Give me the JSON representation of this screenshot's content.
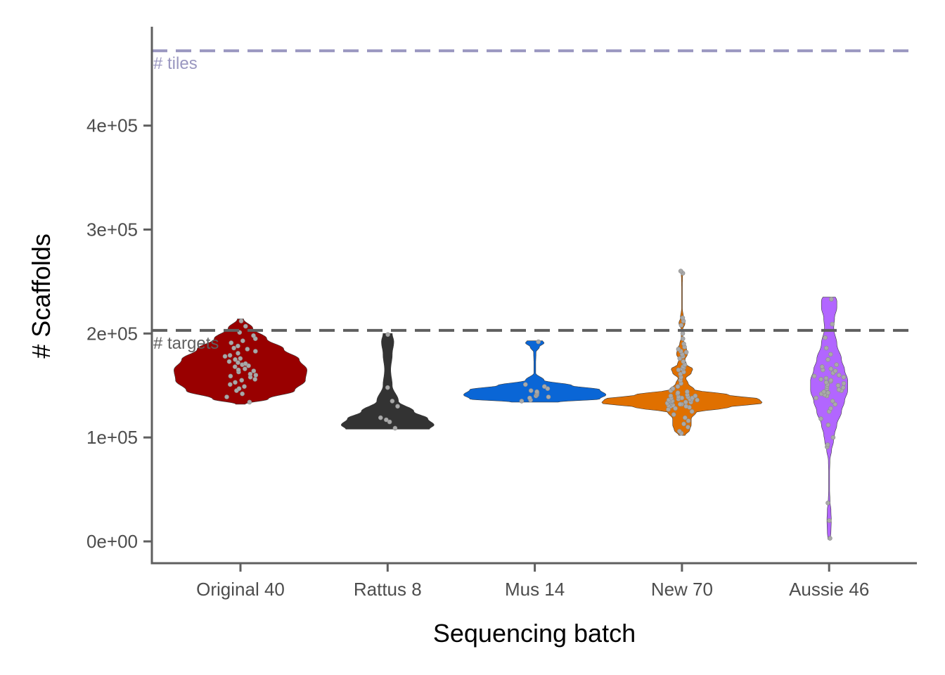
{
  "chart_data": {
    "type": "violin",
    "xlabel": "Sequencing batch",
    "ylabel": "# Scaffolds",
    "ylim": [
      -20000,
      495000
    ],
    "y_ticks": [
      {
        "value": 0,
        "label": "0e+00"
      },
      {
        "value": 100000,
        "label": "1e+05"
      },
      {
        "value": 200000,
        "label": "2e+05"
      },
      {
        "value": 300000,
        "label": "3e+05"
      },
      {
        "value": 400000,
        "label": "4e+05"
      }
    ],
    "reference_lines": [
      {
        "label": "# tiles",
        "value": 472000,
        "color": "#9a97c0",
        "style": "dashed"
      },
      {
        "label": "# targets",
        "value": 203000,
        "color": "#5f5f5f",
        "style": "dashed"
      }
    ],
    "grid": false,
    "legend": "none",
    "point_color": "#a9a9a9",
    "categories": [
      "Original 40",
      "Rattus 8",
      "Mus 14",
      "New 70",
      "Aussie 46"
    ],
    "series": [
      {
        "category": "Original 40",
        "color": "#990000",
        "min": 132000,
        "max": 214000,
        "profile": [
          [
            132000,
            0.03
          ],
          [
            137000,
            0.18
          ],
          [
            145000,
            0.35
          ],
          [
            155000,
            0.42
          ],
          [
            165000,
            0.43
          ],
          [
            175000,
            0.38
          ],
          [
            185000,
            0.28
          ],
          [
            195000,
            0.17
          ],
          [
            205000,
            0.08
          ],
          [
            214000,
            0.02
          ]
        ],
        "points": [
          134000,
          139000,
          142000,
          145000,
          147000,
          149000,
          151000,
          153000,
          155000,
          156000,
          158000,
          159000,
          160000,
          161000,
          163000,
          164000,
          165000,
          166000,
          168000,
          169000,
          170000,
          171000,
          172000,
          173000,
          175000,
          176000,
          178000,
          179000,
          181000,
          183000,
          185000,
          186000,
          188000,
          191000,
          193000,
          195000,
          198000,
          201000,
          207000,
          212000
        ]
      },
      {
        "category": "Rattus 8",
        "color": "#333333",
        "min": 108000,
        "max": 200000,
        "profile": [
          [
            108000,
            0.27
          ],
          [
            112000,
            0.3
          ],
          [
            118000,
            0.26
          ],
          [
            125000,
            0.17
          ],
          [
            135000,
            0.07
          ],
          [
            150000,
            0.03
          ],
          [
            165000,
            0.02
          ],
          [
            180000,
            0.03
          ],
          [
            192000,
            0.04
          ],
          [
            200000,
            0.03
          ]
        ],
        "points": [
          109000,
          115000,
          117000,
          119000,
          130000,
          135000,
          148000,
          199000
        ]
      },
      {
        "category": "Mus 14",
        "color": "#0a66d6",
        "min": 134000,
        "max": 193000,
        "profile": [
          [
            134000,
            0.15
          ],
          [
            137000,
            0.42
          ],
          [
            141000,
            0.46
          ],
          [
            146000,
            0.42
          ],
          [
            150000,
            0.24
          ],
          [
            155000,
            0.06
          ],
          [
            162000,
            0.006
          ],
          [
            172000,
            0.006
          ],
          [
            182000,
            0.008
          ],
          [
            187000,
            0.03
          ],
          [
            191000,
            0.06
          ],
          [
            193000,
            0.05
          ]
        ],
        "points": [
          135000,
          136000,
          138000,
          139000,
          140000,
          141000,
          142000,
          143000,
          144000,
          145000,
          147000,
          149000,
          151000,
          192000
        ]
      },
      {
        "category": "New 70",
        "color": "#e07000",
        "min": 102000,
        "max": 261000,
        "profile": [
          [
            102000,
            0.02
          ],
          [
            107000,
            0.05
          ],
          [
            112000,
            0.06
          ],
          [
            118000,
            0.06
          ],
          [
            124000,
            0.09
          ],
          [
            129000,
            0.3
          ],
          [
            133000,
            0.52
          ],
          [
            137000,
            0.5
          ],
          [
            141000,
            0.3
          ],
          [
            146000,
            0.08
          ],
          [
            152000,
            0.04
          ],
          [
            157000,
            0.025
          ],
          [
            162000,
            0.06
          ],
          [
            166000,
            0.07
          ],
          [
            170000,
            0.03
          ],
          [
            175000,
            0.02
          ],
          [
            180000,
            0.035
          ],
          [
            185000,
            0.03
          ],
          [
            190000,
            0.015
          ],
          [
            196000,
            0.005
          ],
          [
            203000,
            0.003
          ],
          [
            210000,
            0.02
          ],
          [
            215000,
            0.01
          ],
          [
            225000,
            0.002
          ],
          [
            240000,
            0.002
          ],
          [
            252000,
            0.003
          ],
          [
            258000,
            0.005
          ],
          [
            261000,
            0.004
          ]
        ],
        "points": [
          104000,
          106000,
          110000,
          113000,
          116000,
          119000,
          122000,
          125000,
          127000,
          128000,
          129000,
          130000,
          130000,
          131000,
          131000,
          132000,
          132000,
          133000,
          133000,
          134000,
          134000,
          134000,
          135000,
          135000,
          135000,
          136000,
          136000,
          136000,
          137000,
          137000,
          138000,
          138000,
          138000,
          139000,
          139000,
          140000,
          140000,
          141000,
          142000,
          143000,
          144000,
          145000,
          147000,
          149000,
          152000,
          155000,
          158000,
          161000,
          163000,
          165000,
          166000,
          167000,
          168000,
          170000,
          173000,
          176000,
          178000,
          180000,
          182000,
          183000,
          185000,
          187000,
          190000,
          195000,
          200000,
          208000,
          212000,
          215000,
          258000,
          260000
        ]
      },
      {
        "category": "Aussie 46",
        "color": "#b266ff",
        "min": 2000,
        "max": 235000,
        "profile": [
          [
            2000,
            0.008
          ],
          [
            10000,
            0.012
          ],
          [
            20000,
            0.014
          ],
          [
            30000,
            0.012
          ],
          [
            38000,
            0.006
          ],
          [
            50000,
            0.003
          ],
          [
            65000,
            0.003
          ],
          [
            78000,
            0.005
          ],
          [
            88000,
            0.016
          ],
          [
            96000,
            0.028
          ],
          [
            103000,
            0.035
          ],
          [
            112000,
            0.05
          ],
          [
            125000,
            0.08
          ],
          [
            135000,
            0.1
          ],
          [
            145000,
            0.12
          ],
          [
            155000,
            0.12
          ],
          [
            165000,
            0.1
          ],
          [
            175000,
            0.08
          ],
          [
            190000,
            0.05
          ],
          [
            205000,
            0.03
          ],
          [
            215000,
            0.035
          ],
          [
            225000,
            0.05
          ],
          [
            232000,
            0.05
          ],
          [
            235000,
            0.04
          ]
        ],
        "points": [
          3000,
          20000,
          37000,
          91000,
          93000,
          100000,
          112000,
          118000,
          125000,
          128000,
          132000,
          135000,
          138000,
          140000,
          141000,
          142000,
          143000,
          144000,
          145000,
          146000,
          147000,
          148000,
          149000,
          150000,
          151000,
          152000,
          153000,
          154000,
          155000,
          156000,
          157000,
          158000,
          159000,
          160000,
          162000,
          164000,
          165000,
          166000,
          168000,
          170000,
          175000,
          180000,
          186000,
          196000,
          209000,
          233000
        ]
      }
    ]
  }
}
